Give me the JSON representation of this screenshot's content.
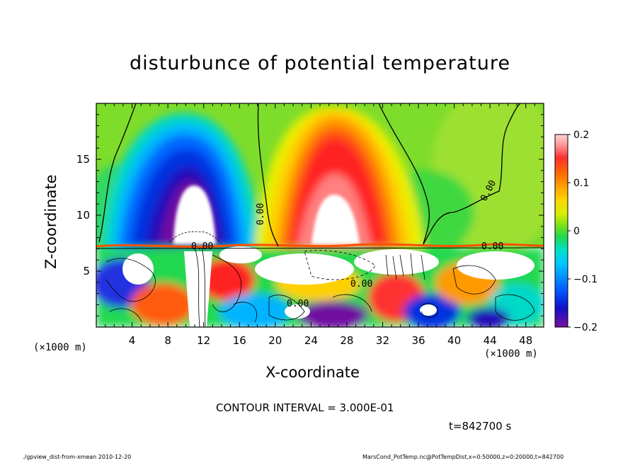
{
  "chart_data": {
    "type": "heatmap",
    "title": "disturbunce of potential temperature",
    "xlabel": "X-coordinate",
    "ylabel": "Z-coordinate",
    "x_unit_left": "(×1000 m)",
    "x_unit_right": "(×1000 m)",
    "xlim": [
      0,
      50
    ],
    "ylim": [
      0,
      20
    ],
    "x_ticks": [
      4,
      8,
      12,
      16,
      20,
      24,
      28,
      32,
      36,
      40,
      44,
      48
    ],
    "y_ticks": [
      5,
      10,
      15
    ],
    "colorbar": {
      "min": -0.2,
      "max": 0.2,
      "tick_values": [
        0.2,
        0.1,
        0,
        -0.1,
        -0.2
      ],
      "tick_labels": [
        "0.2",
        "0.1",
        "0",
        "−0.1",
        "−0.2"
      ]
    },
    "contour_label": "0.00",
    "features": [
      {
        "type": "cold_plume",
        "x": 11,
        "z": 11,
        "value": -0.2
      },
      {
        "type": "warm_plume",
        "x": 26,
        "z": 11,
        "value": 0.2
      }
    ]
  },
  "contour_interval": "CONTOUR INTERVAL = 3.000E-01",
  "time_label": "t=842700 s",
  "footer_left": "./gpview_dist-from-xmean  2010-12-20",
  "footer_right": "MarsCond_PotTemp.nc@PotTempDist,x=0:50000,z=0:20000,t=842700"
}
